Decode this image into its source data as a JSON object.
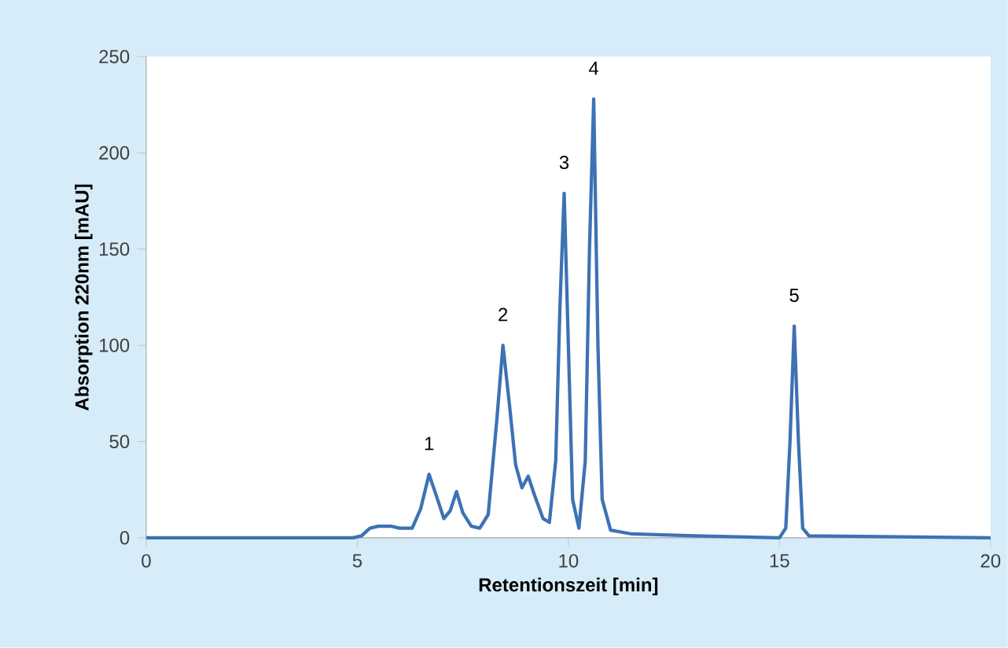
{
  "chart_data": {
    "type": "line",
    "xlabel": "Retentionszeit [min]",
    "ylabel": "Absorption 220nm [mAU]",
    "x": [
      0,
      4.9,
      5.1,
      5.3,
      5.5,
      5.8,
      6.0,
      6.3,
      6.5,
      6.7,
      6.9,
      7.05,
      7.2,
      7.35,
      7.5,
      7.7,
      7.9,
      8.1,
      8.3,
      8.45,
      8.6,
      8.75,
      8.9,
      9.05,
      9.2,
      9.4,
      9.55,
      9.7,
      9.8,
      9.9,
      10.0,
      10.1,
      10.25,
      10.4,
      10.5,
      10.6,
      10.7,
      10.8,
      11.0,
      11.5,
      13,
      15.0,
      15.15,
      15.25,
      15.35,
      15.45,
      15.55,
      15.7,
      20
    ],
    "values": [
      0,
      0,
      1,
      5,
      6,
      6,
      5,
      5,
      15,
      33,
      20,
      10,
      14,
      24,
      13,
      6,
      5,
      12,
      60,
      100,
      70,
      38,
      26,
      32,
      22,
      10,
      8,
      40,
      120,
      179,
      100,
      20,
      5,
      40,
      150,
      228,
      100,
      20,
      4,
      2,
      1,
      0,
      5,
      50,
      110,
      50,
      5,
      1,
      0
    ],
    "color": "#3d72b4",
    "xlim": [
      0,
      20
    ],
    "ylim": [
      0,
      250
    ],
    "xticks": [
      0,
      5,
      10,
      15,
      20
    ],
    "yticks": [
      0,
      50,
      100,
      150,
      200,
      250
    ],
    "annotations": [
      {
        "text": "1",
        "x": 6.7,
        "y": 33
      },
      {
        "text": "2",
        "x": 8.45,
        "y": 100
      },
      {
        "text": "3",
        "x": 9.9,
        "y": 179
      },
      {
        "text": "4",
        "x": 10.6,
        "y": 228
      },
      {
        "text": "5",
        "x": 15.35,
        "y": 110
      }
    ]
  }
}
